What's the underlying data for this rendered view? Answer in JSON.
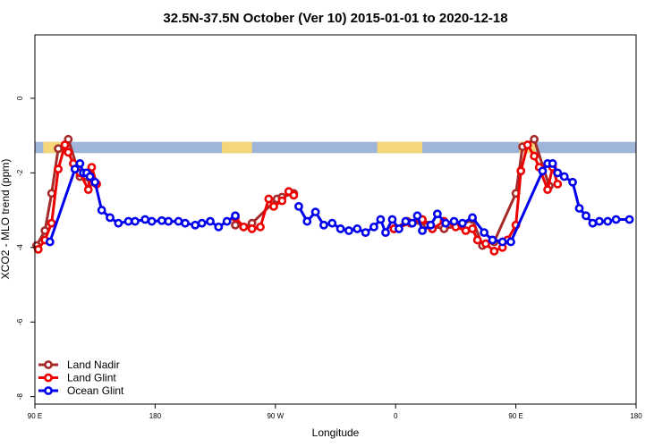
{
  "chart_data": {
    "type": "line",
    "title": "32.5N-37.5N October (Ver 10)   2015-01-01 to 2020-12-18",
    "xlabel": "Longitude",
    "ylabel": "XCO2 - MLO trend (ppm)",
    "xlim": [
      90,
      450
    ],
    "ylim": [
      -8.2,
      1.7
    ],
    "x_ticks": [
      {
        "value": 90,
        "label": "90 E"
      },
      {
        "value": 162,
        "label": "180"
      },
      {
        "value": 234,
        "label": "90 W"
      },
      {
        "value": 306,
        "label": "0"
      },
      {
        "value": 378,
        "label": "90 E"
      },
      {
        "value": 450,
        "label": "180"
      }
    ],
    "y_ticks": [
      0,
      -2,
      -4,
      -6,
      -8
    ],
    "grid": false,
    "legend_position": "bottom-left",
    "land_mask_band": {
      "y_range": [
        -1.47,
        -1.17
      ],
      "ocean_color": "#9fb5d9",
      "land_color": "#f5d77a",
      "land_segments": [
        [
          95,
          110
        ],
        [
          202,
          220
        ],
        [
          295,
          303
        ],
        [
          300,
          322
        ],
        [
          380,
          390
        ]
      ]
    },
    "series": [
      {
        "name": "Land Nadir",
        "color": "#a52a2a",
        "points": [
          [
            91,
            -3.95
          ],
          [
            96,
            -3.55
          ],
          [
            100,
            -2.55
          ],
          [
            104,
            -1.35
          ],
          [
            110,
            -1.1
          ],
          [
            117,
            -2.1
          ],
          [
            124,
            -2.25
          ],
          [
            210,
            -3.4
          ],
          [
            215,
            -3.45
          ],
          [
            220,
            -3.35
          ],
          [
            235,
            -2.7
          ],
          [
            238,
            -2.65
          ],
          [
            245,
            -2.55
          ],
          [
            305,
            -3.5
          ],
          [
            313,
            -3.3
          ],
          [
            325,
            -3.4
          ],
          [
            335,
            -3.5
          ],
          [
            345,
            -3.4
          ],
          [
            352,
            -3.25
          ],
          [
            358,
            -3.95
          ],
          [
            365,
            -3.85
          ],
          [
            378,
            -2.55
          ],
          [
            382,
            -1.3
          ],
          [
            389,
            -1.1
          ],
          [
            398,
            -2.35
          ]
        ]
      },
      {
        "name": "Land Glint",
        "color": "#ee0000",
        "points": [
          [
            92,
            -4.05
          ],
          [
            96,
            -3.8
          ],
          [
            100,
            -3.35
          ],
          [
            104,
            -1.9
          ],
          [
            108,
            -1.25
          ],
          [
            110,
            -1.45
          ],
          [
            113,
            -1.75
          ],
          [
            117,
            -2.0
          ],
          [
            122,
            -2.45
          ],
          [
            124,
            -1.85
          ],
          [
            127,
            -2.3
          ],
          [
            210,
            -3.2
          ],
          [
            215,
            -3.45
          ],
          [
            220,
            -3.5
          ],
          [
            225,
            -3.45
          ],
          [
            230,
            -2.7
          ],
          [
            233,
            -2.9
          ],
          [
            238,
            -2.75
          ],
          [
            242,
            -2.5
          ],
          [
            245,
            -2.6
          ],
          [
            305,
            -3.5
          ],
          [
            315,
            -3.35
          ],
          [
            322,
            -3.25
          ],
          [
            328,
            -3.5
          ],
          [
            335,
            -3.3
          ],
          [
            342,
            -3.45
          ],
          [
            348,
            -3.55
          ],
          [
            352,
            -3.5
          ],
          [
            355,
            -3.8
          ],
          [
            360,
            -3.9
          ],
          [
            365,
            -4.1
          ],
          [
            370,
            -4.0
          ],
          [
            373,
            -3.8
          ],
          [
            378,
            -3.4
          ],
          [
            381,
            -1.95
          ],
          [
            385,
            -1.25
          ],
          [
            389,
            -1.55
          ],
          [
            392,
            -1.85
          ],
          [
            397,
            -2.45
          ],
          [
            400,
            -1.85
          ],
          [
            403,
            -2.3
          ]
        ]
      },
      {
        "name": "Ocean Glint",
        "color": "#0000ee",
        "points": [
          [
            99,
            -3.85
          ],
          [
            114,
            -1.9
          ],
          [
            117,
            -1.75
          ],
          [
            119,
            -2.0
          ],
          [
            121,
            -2.0
          ],
          [
            123,
            -2.1
          ],
          [
            126,
            -2.25
          ],
          [
            130,
            -3.0
          ],
          [
            135,
            -3.2
          ],
          [
            140,
            -3.35
          ],
          [
            146,
            -3.3
          ],
          [
            150,
            -3.3
          ],
          [
            156,
            -3.25
          ],
          [
            160,
            -3.3
          ],
          [
            166,
            -3.28
          ],
          [
            170,
            -3.3
          ],
          [
            176,
            -3.3
          ],
          [
            180,
            -3.35
          ],
          [
            186,
            -3.4
          ],
          [
            190,
            -3.35
          ],
          [
            195,
            -3.3
          ],
          [
            200,
            -3.45
          ],
          [
            205,
            -3.3
          ],
          [
            210,
            -3.15
          ],
          [
            248,
            -2.9
          ],
          [
            253,
            -3.3
          ],
          [
            258,
            -3.05
          ],
          [
            263,
            -3.4
          ],
          [
            268,
            -3.35
          ],
          [
            273,
            -3.5
          ],
          [
            278,
            -3.55
          ],
          [
            283,
            -3.5
          ],
          [
            288,
            -3.6
          ],
          [
            293,
            -3.45
          ],
          [
            297,
            -3.25
          ],
          [
            300,
            -3.6
          ],
          [
            304,
            -3.25
          ],
          [
            308,
            -3.5
          ],
          [
            312,
            -3.3
          ],
          [
            316,
            -3.35
          ],
          [
            319,
            -3.15
          ],
          [
            322,
            -3.55
          ],
          [
            327,
            -3.4
          ],
          [
            331,
            -3.1
          ],
          [
            336,
            -3.35
          ],
          [
            341,
            -3.3
          ],
          [
            346,
            -3.35
          ],
          [
            352,
            -3.2
          ],
          [
            359,
            -3.6
          ],
          [
            364,
            -3.8
          ],
          [
            370,
            -3.85
          ],
          [
            375,
            -3.85
          ],
          [
            394,
            -1.95
          ],
          [
            397,
            -1.75
          ],
          [
            400,
            -1.75
          ],
          [
            403,
            -2.0
          ],
          [
            407,
            -2.1
          ],
          [
            412,
            -2.25
          ],
          [
            416,
            -2.95
          ],
          [
            420,
            -3.15
          ],
          [
            424,
            -3.35
          ],
          [
            428,
            -3.3
          ],
          [
            433,
            -3.3
          ],
          [
            438,
            -3.25
          ],
          [
            446,
            -3.25
          ]
        ]
      }
    ]
  }
}
